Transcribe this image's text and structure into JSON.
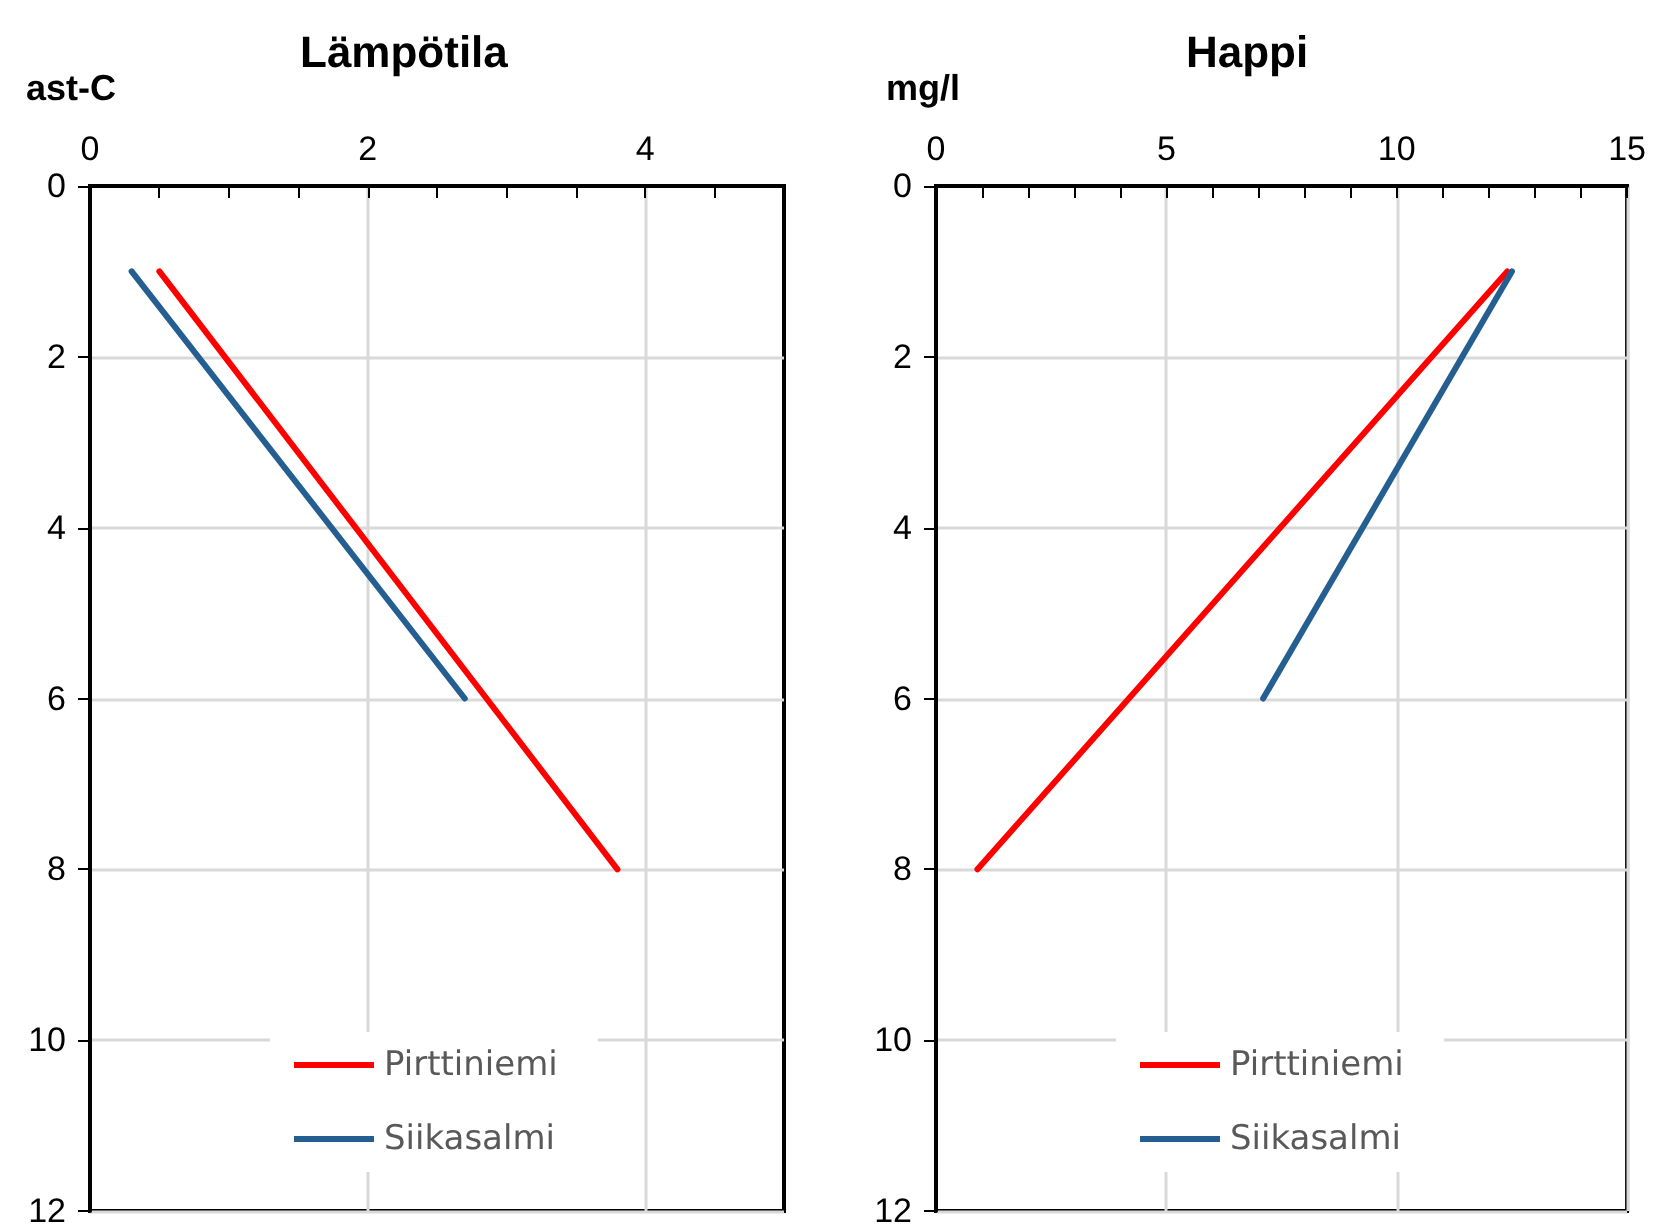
{
  "chart_data": [
    {
      "type": "line",
      "title": "Lämpötila",
      "xlabel": "ast-C",
      "xlim": [
        0,
        5
      ],
      "xticks": [
        0,
        {
          "value": 0.5,
          "label": null
        },
        {
          "value": 1,
          "label": null
        },
        {
          "value": 1.5,
          "label": null
        },
        2,
        {
          "value": 2.5,
          "label": null
        },
        {
          "value": 3,
          "label": null
        },
        {
          "value": 3.5,
          "label": null
        },
        4,
        {
          "value": 4.5,
          "label": null
        },
        {
          "value": 5,
          "label": null
        }
      ],
      "ylim": [
        12,
        0
      ],
      "yticks": [
        0,
        2,
        4,
        6,
        8,
        10,
        12
      ],
      "grid": true,
      "legend": "bottom",
      "marker": "none",
      "line_style": "solid",
      "series": [
        {
          "name": "Pirttiniemi",
          "color": "#ff0000",
          "x": [
            0.5,
            3.8
          ],
          "values": [
            1,
            8
          ]
        },
        {
          "name": "Siikasalmi",
          "color": "#255e91",
          "x": [
            0.3,
            2.7
          ],
          "values": [
            1,
            6
          ]
        }
      ]
    },
    {
      "type": "line",
      "title": "Happi",
      "xlabel": "mg/l",
      "xlim": [
        0,
        15
      ],
      "xticks": [
        0,
        {
          "value": 1,
          "label": null
        },
        {
          "value": 2,
          "label": null
        },
        {
          "value": 3,
          "label": null
        },
        {
          "value": 4,
          "label": null
        },
        5,
        {
          "value": 6,
          "label": null
        },
        {
          "value": 7,
          "label": null
        },
        {
          "value": 8,
          "label": null
        },
        {
          "value": 9,
          "label": null
        },
        10,
        {
          "value": 11,
          "label": null
        },
        {
          "value": 12,
          "label": null
        },
        {
          "value": 13,
          "label": null
        },
        {
          "value": 14,
          "label": null
        },
        15
      ],
      "ylim": [
        12,
        0
      ],
      "yticks": [
        0,
        2,
        4,
        6,
        8,
        10,
        12
      ],
      "grid": true,
      "legend": "bottom",
      "marker": "none",
      "line_style": "solid",
      "series": [
        {
          "name": "Pirttiniemi",
          "color": "#ff0000",
          "x": [
            12.4,
            0.9
          ],
          "values": [
            1,
            8
          ]
        },
        {
          "name": "Siikasalmi",
          "color": "#255e91",
          "x": [
            12.5,
            7.1
          ],
          "values": [
            1,
            6
          ]
        }
      ]
    }
  ]
}
